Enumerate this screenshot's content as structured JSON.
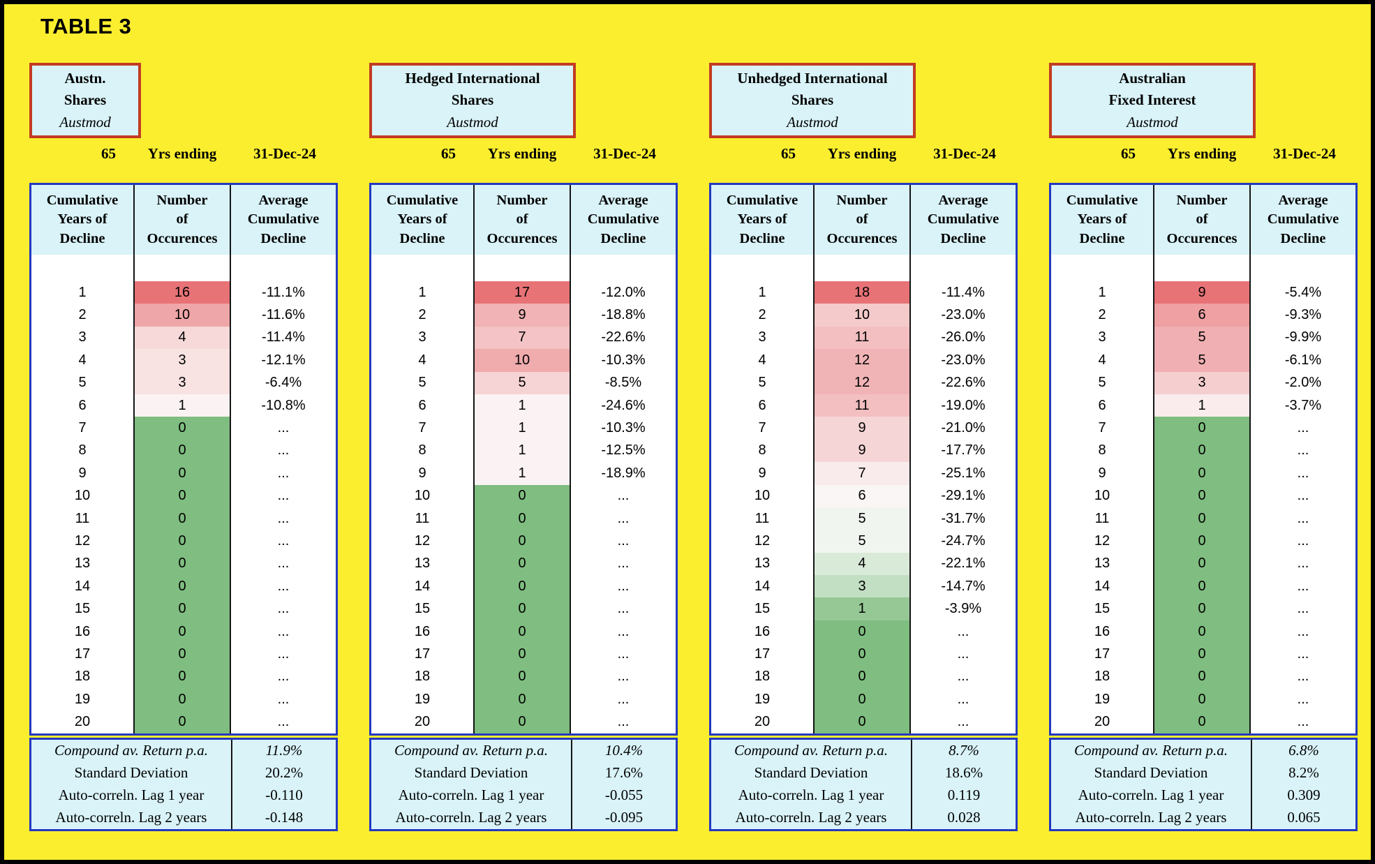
{
  "title": "TABLE 3",
  "period": {
    "years": "65",
    "label": "Yrs ending",
    "end_date": "31-Dec-24"
  },
  "column_headers": [
    [
      "Cumulative",
      "Years of",
      "Decline"
    ],
    [
      "Number",
      "of",
      "Occurences"
    ],
    [
      "Average",
      "Cumulative",
      "Decline"
    ]
  ],
  "footer_labels": [
    "Compound av. Return p.a.",
    "Standard Deviation",
    "Auto-correln. Lag 1 year",
    "Auto-correln. Lag 2 years"
  ],
  "colors": {
    "background_yellow": "#FBEE2F",
    "panel_fill_cyan": "#D9F3F8",
    "header_box_border_red": "#C23B22",
    "table_border_blue": "#2438C0",
    "grid_line_black": "#141414",
    "scale_high_red": "#E77377",
    "scale_mid_white": "#FCFBFB",
    "scale_low_green": "#7FBD80"
  },
  "chart_data": [
    {
      "type": "table",
      "name_lines": [
        "Austn.",
        "Shares"
      ],
      "subtitle": "Austmod",
      "period": "65 Yrs ending 31-Dec-24",
      "columns": [
        "Cumulative Years of Decline",
        "Number of Occurences",
        "Average Cumulative Decline"
      ],
      "cumulative_years": [
        1,
        2,
        3,
        4,
        5,
        6,
        7,
        8,
        9,
        10,
        11,
        12,
        13,
        14,
        15,
        16,
        17,
        18,
        19,
        20
      ],
      "occurrences": [
        16,
        10,
        4,
        3,
        3,
        1,
        0,
        0,
        0,
        0,
        0,
        0,
        0,
        0,
        0,
        0,
        0,
        0,
        0,
        0
      ],
      "avg_cumulative_decline": [
        "-11.1%",
        "-11.6%",
        "-11.4%",
        "-12.1%",
        "-6.4%",
        "-10.8%",
        "...",
        "...",
        "...",
        "...",
        "...",
        "...",
        "...",
        "...",
        "...",
        "...",
        "...",
        "...",
        "...",
        "..."
      ],
      "stats": {
        "compound_av_return_pa": "11.9%",
        "standard_deviation": "20.2%",
        "auto_correln_lag_1_year": "-0.110",
        "auto_correln_lag_2_years": "-0.148"
      }
    },
    {
      "type": "table",
      "name_lines": [
        "Hedged International",
        "Shares"
      ],
      "subtitle": "Austmod",
      "period": "65 Yrs ending 31-Dec-24",
      "columns": [
        "Cumulative Years of Decline",
        "Number of Occurences",
        "Average Cumulative Decline"
      ],
      "cumulative_years": [
        1,
        2,
        3,
        4,
        5,
        6,
        7,
        8,
        9,
        10,
        11,
        12,
        13,
        14,
        15,
        16,
        17,
        18,
        19,
        20
      ],
      "occurrences": [
        17,
        9,
        7,
        10,
        5,
        1,
        1,
        1,
        1,
        0,
        0,
        0,
        0,
        0,
        0,
        0,
        0,
        0,
        0,
        0
      ],
      "avg_cumulative_decline": [
        "-12.0%",
        "-18.8%",
        "-22.6%",
        "-10.3%",
        "-8.5%",
        "-24.6%",
        "-10.3%",
        "-12.5%",
        "-18.9%",
        "...",
        "...",
        "...",
        "...",
        "...",
        "...",
        "...",
        "...",
        "...",
        "...",
        "..."
      ],
      "stats": {
        "compound_av_return_pa": "10.4%",
        "standard_deviation": "17.6%",
        "auto_correln_lag_1_year": "-0.055",
        "auto_correln_lag_2_years": "-0.095"
      }
    },
    {
      "type": "table",
      "name_lines": [
        "Unhedged International",
        "Shares"
      ],
      "subtitle": "Austmod",
      "period": "65 Yrs ending 31-Dec-24",
      "columns": [
        "Cumulative Years of Decline",
        "Number of Occurences",
        "Average Cumulative Decline"
      ],
      "cumulative_years": [
        1,
        2,
        3,
        4,
        5,
        6,
        7,
        8,
        9,
        10,
        11,
        12,
        13,
        14,
        15,
        16,
        17,
        18,
        19,
        20
      ],
      "occurrences": [
        18,
        10,
        11,
        12,
        12,
        11,
        9,
        9,
        7,
        6,
        5,
        5,
        4,
        3,
        1,
        0,
        0,
        0,
        0,
        0
      ],
      "avg_cumulative_decline": [
        "-11.4%",
        "-23.0%",
        "-26.0%",
        "-23.0%",
        "-22.6%",
        "-19.0%",
        "-21.0%",
        "-17.7%",
        "-25.1%",
        "-29.1%",
        "-31.7%",
        "-24.7%",
        "-22.1%",
        "-14.7%",
        "-3.9%",
        "...",
        "...",
        "...",
        "...",
        "..."
      ],
      "stats": {
        "compound_av_return_pa": "8.7%",
        "standard_deviation": "18.6%",
        "auto_correln_lag_1_year": "0.119",
        "auto_correln_lag_2_years": "0.028"
      }
    },
    {
      "type": "table",
      "name_lines": [
        "Australian",
        "Fixed Interest"
      ],
      "subtitle": "Austmod",
      "period": "65 Yrs ending 31-Dec-24",
      "columns": [
        "Cumulative Years of Decline",
        "Number of Occurences",
        "Average Cumulative Decline"
      ],
      "cumulative_years": [
        1,
        2,
        3,
        4,
        5,
        6,
        7,
        8,
        9,
        10,
        11,
        12,
        13,
        14,
        15,
        16,
        17,
        18,
        19,
        20
      ],
      "occurrences": [
        9,
        6,
        5,
        5,
        3,
        1,
        0,
        0,
        0,
        0,
        0,
        0,
        0,
        0,
        0,
        0,
        0,
        0,
        0,
        0
      ],
      "avg_cumulative_decline": [
        "-5.4%",
        "-9.3%",
        "-9.9%",
        "-6.1%",
        "-2.0%",
        "-3.7%",
        "...",
        "...",
        "...",
        "...",
        "...",
        "...",
        "...",
        "...",
        "...",
        "...",
        "...",
        "...",
        "...",
        "..."
      ],
      "stats": {
        "compound_av_return_pa": "6.8%",
        "standard_deviation": "8.2%",
        "auto_correln_lag_1_year": "0.309",
        "auto_correln_lag_2_years": "0.065"
      }
    }
  ]
}
